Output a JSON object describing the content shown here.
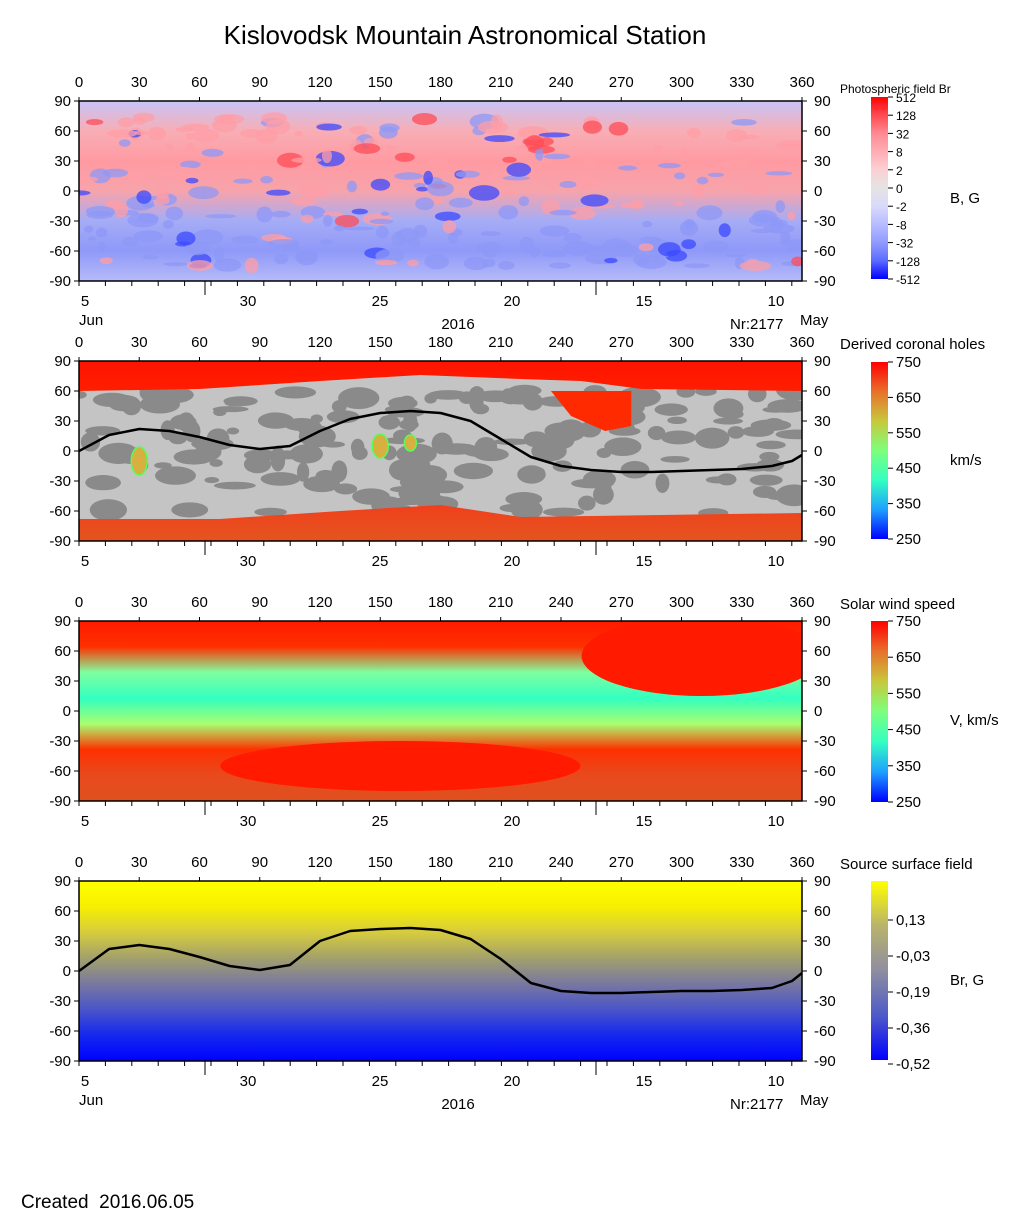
{
  "header": {
    "title": "Kislovodsk Mountain Astronomical Station",
    "created": "Created  2016.06.05"
  },
  "palettes": {
    "photospheric": [
      "#0000ff",
      "#5b6bff",
      "#8f9bff",
      "#b7bcff",
      "#d9dafb",
      "#e4e4e4",
      "#fbd0d3",
      "#ffadb4",
      "#ff8a92",
      "#ff4a52",
      "#ff0000"
    ],
    "speed": [
      "#0000ff",
      "#1ea0ff",
      "#33ffc0",
      "#7dff7d",
      "#c8c83a",
      "#e8702a",
      "#ff0000"
    ],
    "source": [
      "#0000ff",
      "#4f5ac8",
      "#8e8ea0",
      "#b9b36b",
      "#ffff00"
    ],
    "coronal_gray": [
      "#8a8a8a",
      "#c4c4c4"
    ]
  },
  "panels": [
    {
      "id": "photospheric",
      "lon_ticks": [
        "0",
        "30",
        "60",
        "90",
        "120",
        "150",
        "180",
        "210",
        "240",
        "270",
        "300",
        "330",
        "360"
      ],
      "lat_ticks": [
        "90",
        "60",
        "30",
        "0",
        "-30",
        "-60",
        "-90"
      ],
      "date_ticks": [
        "5",
        "30",
        "25",
        "20",
        "15",
        "10"
      ],
      "date_labels": {
        "left_month": "Jun",
        "year": "2016",
        "rotation": "Nr:2177",
        "right_month": "May"
      },
      "colorbar": {
        "title": "Photospheric field Br",
        "unit": "B, G",
        "ticks": [
          "512",
          "128",
          "32",
          "8",
          "2",
          "0",
          "-2",
          "-8",
          "-32",
          "-128",
          "-512"
        ]
      }
    },
    {
      "id": "coronal",
      "lon_ticks": [
        "0",
        "30",
        "60",
        "90",
        "120",
        "150",
        "180",
        "210",
        "240",
        "270",
        "300",
        "330",
        "360"
      ],
      "lat_ticks": [
        "90",
        "60",
        "30",
        "0",
        "-30",
        "-60",
        "-90"
      ],
      "date_ticks": [
        "5",
        "30",
        "25",
        "20",
        "15",
        "10"
      ],
      "colorbar": {
        "title": "Derived coronal holes",
        "unit": "km/s",
        "ticks": [
          "750",
          "650",
          "550",
          "450",
          "350",
          "250"
        ]
      }
    },
    {
      "id": "speed",
      "lon_ticks": [
        "0",
        "30",
        "60",
        "90",
        "120",
        "150",
        "180",
        "210",
        "240",
        "270",
        "300",
        "330",
        "360"
      ],
      "lat_ticks": [
        "90",
        "60",
        "30",
        "0",
        "-30",
        "-60",
        "-90"
      ],
      "date_ticks": [
        "5",
        "30",
        "25",
        "20",
        "15",
        "10"
      ],
      "colorbar": {
        "title": "Solar wind speed",
        "unit": "V, km/s",
        "ticks": [
          "750",
          "650",
          "550",
          "450",
          "350",
          "250"
        ]
      }
    },
    {
      "id": "source",
      "lon_ticks": [
        "0",
        "30",
        "60",
        "90",
        "120",
        "150",
        "180",
        "210",
        "240",
        "270",
        "300",
        "330",
        "360"
      ],
      "lat_ticks": [
        "90",
        "60",
        "30",
        "0",
        "-30",
        "-60",
        "-90"
      ],
      "date_ticks": [
        "5",
        "30",
        "25",
        "20",
        "15",
        "10"
      ],
      "date_labels": {
        "left_month": "Jun",
        "year": "2016",
        "rotation": "Nr:2177",
        "right_month": "May"
      },
      "colorbar": {
        "title": "Source surface field",
        "unit": "Br, G",
        "ticks": [
          "0,13",
          "-0,03",
          "-0,19",
          "-0,36",
          "-0,52"
        ]
      }
    }
  ],
  "chart_data": [
    {
      "type": "heatmap",
      "name_source": "Photospheric field Br",
      "xlim": [
        0,
        360
      ],
      "ylim": [
        -90,
        90
      ],
      "colorbar_range_G": [
        -512,
        512
      ]
    },
    {
      "type": "heatmap",
      "name_source": "Derived coronal holes",
      "xlim": [
        0,
        360
      ],
      "ylim": [
        -90,
        90
      ],
      "colorbar_range_km_s": [
        250,
        750
      ],
      "neutral_line": {
        "x": [
          0,
          15,
          30,
          45,
          60,
          75,
          90,
          105,
          120,
          135,
          150,
          165,
          180,
          195,
          210,
          225,
          240,
          255,
          270,
          285,
          300,
          315,
          330,
          345,
          355,
          360
        ],
        "y": [
          0,
          16,
          22,
          20,
          14,
          6,
          2,
          5,
          20,
          32,
          38,
          40,
          38,
          30,
          12,
          -6,
          -15,
          -19,
          -21,
          -21,
          -20,
          -19,
          -18,
          -15,
          -10,
          -4
        ]
      }
    },
    {
      "type": "heatmap",
      "name_source": "Solar wind speed",
      "xlim": [
        0,
        360
      ],
      "ylim": [
        -90,
        90
      ],
      "colorbar_range_km_s": [
        250,
        750
      ]
    },
    {
      "type": "heatmap",
      "name_source": "Source surface field",
      "xlim": [
        0,
        360
      ],
      "ylim": [
        -90,
        90
      ],
      "colorbar_range_G": [
        -0.52,
        0.21
      ],
      "neutral_line": {
        "x": [
          0,
          15,
          30,
          45,
          60,
          75,
          90,
          105,
          120,
          135,
          150,
          165,
          180,
          195,
          210,
          225,
          240,
          255,
          270,
          285,
          300,
          315,
          330,
          345,
          355,
          360
        ],
        "y": [
          0,
          22,
          26,
          22,
          14,
          5,
          1,
          6,
          30,
          40,
          42,
          43,
          41,
          32,
          12,
          -12,
          -20,
          -22,
          -22,
          -21,
          -20,
          -20,
          -19,
          -17,
          -10,
          -2
        ]
      }
    }
  ]
}
